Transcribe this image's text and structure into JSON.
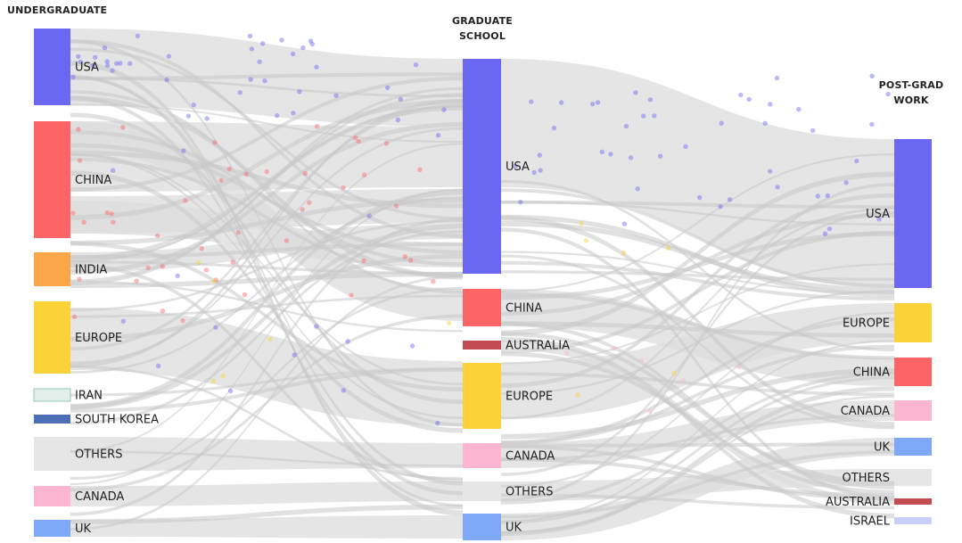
{
  "columns": {
    "undergraduate": "UNDERGRADUATE",
    "graduate_line1": "GRADUATE",
    "graduate_line2": "SCHOOL",
    "postgrad_line1": "POST-GRAD",
    "postgrad_line2": "WORK"
  },
  "colors": {
    "usa": "#6a67f2",
    "china": "#fc6466",
    "india": "#fca64a",
    "europe": "#fbd338",
    "iran": "#e3efea",
    "south_korea": "#4e6eb8",
    "canada": "#fdb6d1",
    "uk": "#7ea9f8",
    "australia": "#c34b52",
    "israel": "#c9cdf9",
    "others": "#e6e6e6",
    "flow": "#dcdcdc"
  },
  "nodes": {
    "undergraduate": [
      {
        "id": "u_usa",
        "label": "USA",
        "color": "usa"
      },
      {
        "id": "u_china",
        "label": "CHINA",
        "color": "china"
      },
      {
        "id": "u_india",
        "label": "INDIA",
        "color": "india"
      },
      {
        "id": "u_europe",
        "label": "EUROPE",
        "color": "europe"
      },
      {
        "id": "u_iran",
        "label": "IRAN",
        "color": "iran"
      },
      {
        "id": "u_korea",
        "label": "SOUTH KOREA",
        "color": "south_korea"
      },
      {
        "id": "u_others",
        "label": "OTHERS",
        "color": "others"
      },
      {
        "id": "u_canada",
        "label": "CANADA",
        "color": "canada"
      },
      {
        "id": "u_uk",
        "label": "UK",
        "color": "uk"
      }
    ],
    "graduate": [
      {
        "id": "g_usa",
        "label": "USA",
        "color": "usa"
      },
      {
        "id": "g_china",
        "label": "CHINA",
        "color": "china"
      },
      {
        "id": "g_australia",
        "label": "AUSTRALIA",
        "color": "australia"
      },
      {
        "id": "g_europe",
        "label": "EUROPE",
        "color": "europe"
      },
      {
        "id": "g_canada",
        "label": "CANADA",
        "color": "canada"
      },
      {
        "id": "g_others",
        "label": "OTHERS",
        "color": "others"
      },
      {
        "id": "g_uk",
        "label": "UK",
        "color": "uk"
      }
    ],
    "postgrad": [
      {
        "id": "p_usa",
        "label": "USA",
        "color": "usa"
      },
      {
        "id": "p_europe",
        "label": "EUROPE",
        "color": "europe"
      },
      {
        "id": "p_china",
        "label": "CHINA",
        "color": "china"
      },
      {
        "id": "p_canada",
        "label": "CANADA",
        "color": "canada"
      },
      {
        "id": "p_uk",
        "label": "UK",
        "color": "uk"
      },
      {
        "id": "p_others",
        "label": "OTHERS",
        "color": "others"
      },
      {
        "id": "p_australia",
        "label": "AUSTRALIA",
        "color": "australia"
      },
      {
        "id": "p_israel",
        "label": "ISRAEL",
        "color": "israel"
      }
    ]
  }
}
